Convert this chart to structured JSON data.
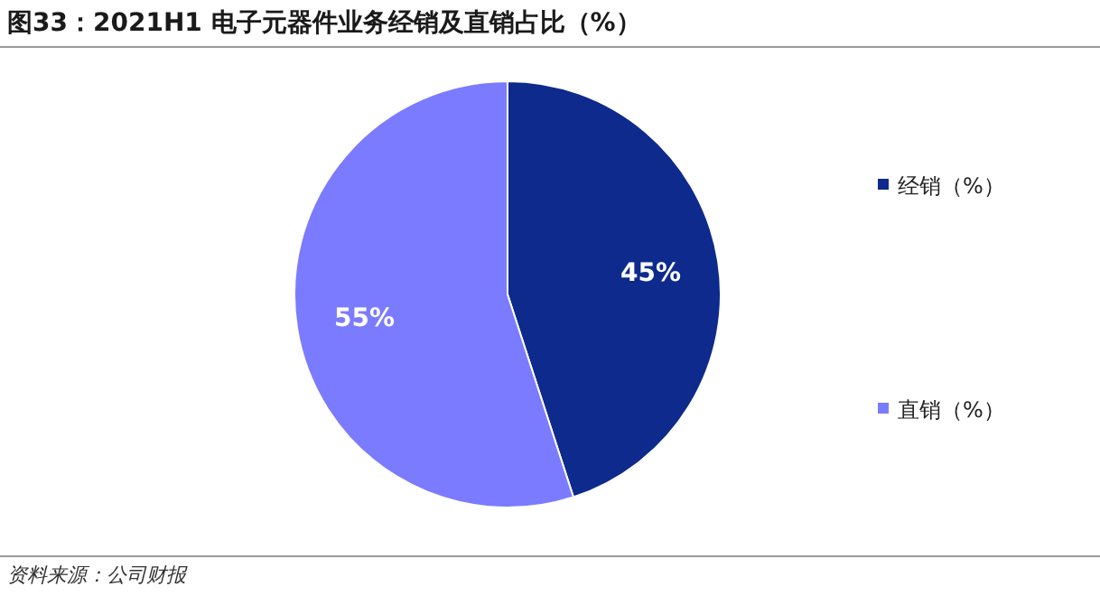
{
  "chart_data": {
    "type": "pie",
    "title": "图33：2021H1 电子元器件业务经销及直销占比（%）",
    "categories": [
      "经销（%）",
      "直销（%）"
    ],
    "values": [
      45,
      55
    ],
    "colors": [
      "#0d2a8c",
      "#7b7bff"
    ],
    "value_labels": [
      "45%",
      "55%"
    ],
    "legend": "right",
    "annotations": [
      "资料来源：公司财报"
    ]
  }
}
